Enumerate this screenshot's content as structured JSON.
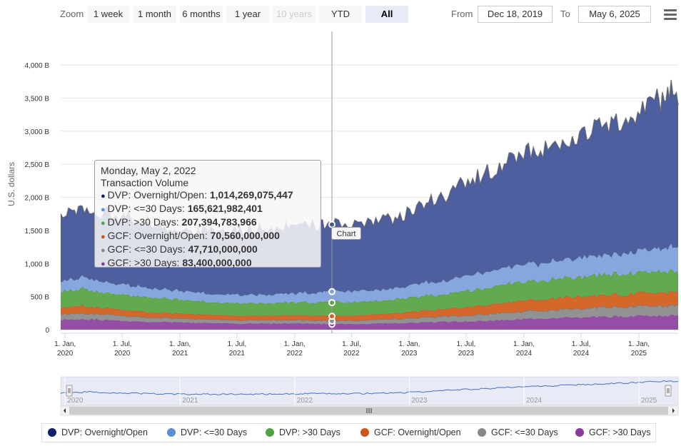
{
  "toolbar": {
    "zoom_label": "Zoom",
    "buttons": [
      {
        "label": "1 week",
        "state": "normal"
      },
      {
        "label": "1 month",
        "state": "normal"
      },
      {
        "label": "6 months",
        "state": "normal"
      },
      {
        "label": "1 year",
        "state": "normal"
      },
      {
        "label": "10 years",
        "state": "disabled"
      },
      {
        "label": "YTD",
        "state": "normal"
      },
      {
        "label": "All",
        "state": "active"
      }
    ],
    "from_label": "From",
    "from_value": "Dec 18, 2019",
    "to_label": "To",
    "to_value": "May 6, 2025",
    "menu_icon": "hamburger-menu-icon"
  },
  "chart_data": {
    "type": "area",
    "stacked": true,
    "ylabel": "U.S. dollars",
    "y_ticks": [
      "0",
      "500 B",
      "1,000 B",
      "1,500 B",
      "2,000 B",
      "2,500 B",
      "3,000 B",
      "3,500 B",
      "4,000 B"
    ],
    "ylim": [
      0,
      4000
    ],
    "y_unit": "billions of U.S. dollars",
    "x_range": [
      "2019-12-18",
      "2025-05-06"
    ],
    "x_ticks": [
      {
        "l1": "1. Jan,",
        "l2": "2020",
        "date": "2020-01-01"
      },
      {
        "l1": "1. Jul,",
        "l2": "2020",
        "date": "2020-07-01"
      },
      {
        "l1": "1. Jan,",
        "l2": "2021",
        "date": "2021-01-01"
      },
      {
        "l1": "1. Jul,",
        "l2": "2021",
        "date": "2021-07-01"
      },
      {
        "l1": "1. Jan,",
        "l2": "2022",
        "date": "2022-01-01"
      },
      {
        "l1": "1. Jul,",
        "l2": "2022",
        "date": "2022-07-01"
      },
      {
        "l1": "1. Jan,",
        "l2": "2023",
        "date": "2023-01-01"
      },
      {
        "l1": "1. Jul,",
        "l2": "2023",
        "date": "2023-07-01"
      },
      {
        "l1": "1. Jan,",
        "l2": "2024",
        "date": "2024-01-01"
      },
      {
        "l1": "1. Jul,",
        "l2": "2024",
        "date": "2024-07-01"
      },
      {
        "l1": "1. Jan,",
        "l2": "2025",
        "date": "2025-01-01"
      }
    ],
    "grid": true,
    "legend_position": "bottom",
    "dates": [
      "2019-12-18",
      "2020-03-01",
      "2020-06-01",
      "2020-09-01",
      "2020-12-01",
      "2021-03-01",
      "2021-06-01",
      "2021-09-01",
      "2021-12-01",
      "2022-03-01",
      "2022-05-02",
      "2022-09-01",
      "2022-12-01",
      "2023-03-01",
      "2023-06-01",
      "2023-09-01",
      "2023-12-01",
      "2024-03-01",
      "2024-06-01",
      "2024-09-01",
      "2024-12-01",
      "2025-03-01",
      "2025-05-06"
    ],
    "series": [
      {
        "name": "GCF: >30 Days",
        "color": "#8e44a0",
        "values": [
          150,
          160,
          140,
          120,
          110,
          100,
          95,
          90,
          95,
          90,
          83,
          90,
          100,
          110,
          120,
          130,
          150,
          170,
          180,
          190,
          200,
          210,
          210
        ]
      },
      {
        "name": "GCF: <=30 Days",
        "color": "#8c8c8c",
        "values": [
          80,
          90,
          80,
          70,
          60,
          55,
          50,
          50,
          50,
          50,
          48,
          55,
          65,
          75,
          85,
          95,
          110,
          120,
          130,
          140,
          145,
          150,
          150
        ]
      },
      {
        "name": "GCF: Overnight/Open",
        "color": "#d35f1f",
        "values": [
          100,
          110,
          90,
          80,
          75,
          70,
          70,
          65,
          70,
          70,
          71,
          80,
          90,
          100,
          120,
          140,
          160,
          170,
          180,
          185,
          190,
          200,
          200
        ]
      },
      {
        "name": "DVP: >30 Days",
        "color": "#5aa546",
        "values": [
          250,
          260,
          230,
          220,
          210,
          200,
          190,
          190,
          195,
          200,
          207,
          205,
          210,
          220,
          240,
          260,
          280,
          290,
          300,
          305,
          310,
          320,
          320
        ]
      },
      {
        "name": "DVP: <=30 Days",
        "color": "#7fa1dc",
        "values": [
          150,
          180,
          160,
          150,
          140,
          130,
          130,
          130,
          140,
          150,
          166,
          170,
          180,
          200,
          220,
          240,
          260,
          270,
          290,
          300,
          320,
          350,
          380
        ]
      },
      {
        "name": "DVP: Overnight/Open",
        "color": "#45569a",
        "values": [
          1000,
          1050,
          1020,
          980,
          920,
          930,
          950,
          990,
          1010,
          1020,
          1014,
          1020,
          1080,
          1200,
          1380,
          1480,
          1640,
          1700,
          1830,
          1950,
          2050,
          2250,
          2300
        ]
      }
    ],
    "navigator_labels": [
      "2020",
      "2021",
      "2022",
      "2023",
      "2024",
      "2025"
    ],
    "tooltip": {
      "date": "Monday, May 2, 2022",
      "subtitle": "Transaction Volume",
      "rows": [
        {
          "name": "DVP: Overnight/Open",
          "value": "1,014,269,075,447",
          "color": "#0d1f6e"
        },
        {
          "name": "DVP: <=30 Days",
          "value": "165,621,982,401",
          "color": "#5b8fd8"
        },
        {
          "name": "DVP: >30 Days",
          "value": "207,394,783,966",
          "color": "#4ea53f"
        },
        {
          "name": "GCF: Overnight/Open",
          "value": "70,560,000,000",
          "color": "#cc5519"
        },
        {
          "name": "GCF: <=30 Days",
          "value": "47,710,000,000",
          "color": "#888888"
        },
        {
          "name": "GCF: >30 Days",
          "value": "83,400,000,000",
          "color": "#8a3c9c"
        }
      ],
      "badge": "Chart"
    },
    "legend": [
      {
        "name": "DVP: Overnight/Open",
        "color": "#0d1f6e"
      },
      {
        "name": "DVP: <=30 Days",
        "color": "#5b8fd8"
      },
      {
        "name": "DVP: >30 Days",
        "color": "#4ea53f"
      },
      {
        "name": "GCF: Overnight/Open",
        "color": "#cc5519"
      },
      {
        "name": "GCF: <=30 Days",
        "color": "#888888"
      },
      {
        "name": "GCF: >30 Days",
        "color": "#8a3c9c"
      }
    ]
  }
}
